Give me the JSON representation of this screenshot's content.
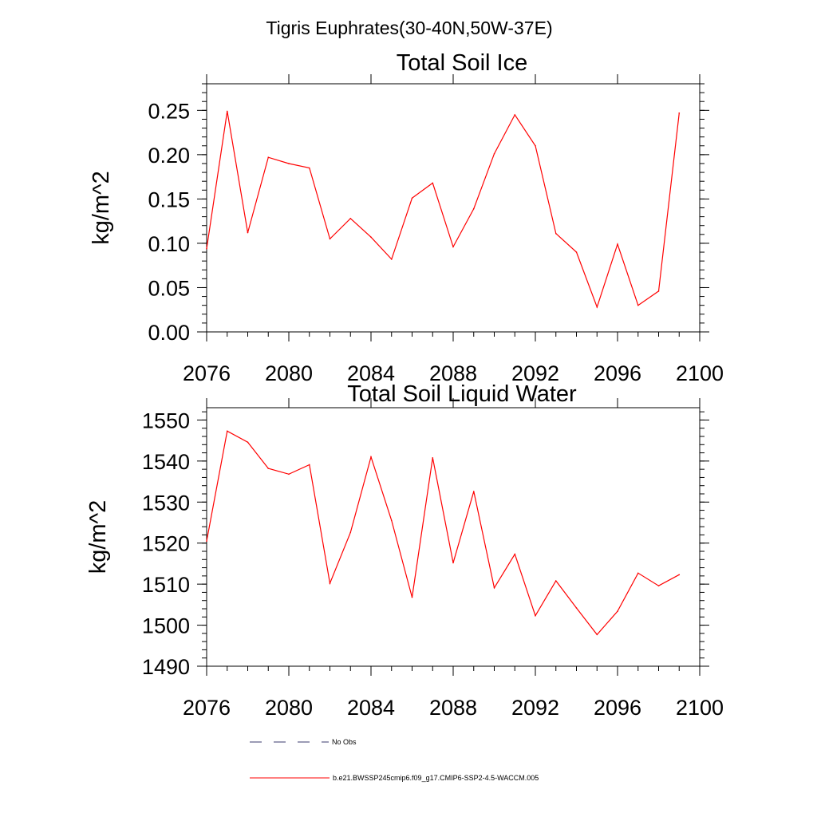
{
  "suptitle": "Tigris Euphrates(30-40N,50W-37E)",
  "chart_data": [
    {
      "type": "line",
      "title": "Total Soil Ice",
      "xlabel": "",
      "ylabel": "kg/m^2",
      "xlim": [
        2076,
        2100
      ],
      "ylim": [
        0.0,
        0.28
      ],
      "xticks": [
        "2076",
        "2080",
        "2084",
        "2088",
        "2092",
        "2096",
        "2100"
      ],
      "yticks": [
        "0.00",
        "0.05",
        "0.10",
        "0.15",
        "0.20",
        "0.25"
      ],
      "grid": false,
      "series": [
        {
          "name": "b.e21.BWSSP245cmip6.f09_g17.CMIP6-SSP2-4.5-WACCM.005",
          "color": "#ff0000",
          "x": [
            2076,
            2077,
            2078,
            2079,
            2080,
            2081,
            2082,
            2083,
            2084,
            2085,
            2086,
            2087,
            2088,
            2089,
            2090,
            2091,
            2092,
            2093,
            2094,
            2095,
            2096,
            2097,
            2098,
            2099
          ],
          "values": [
            0.094,
            0.249,
            0.112,
            0.197,
            0.19,
            0.185,
            0.105,
            0.128,
            0.107,
            0.082,
            0.151,
            0.168,
            0.096,
            0.139,
            0.201,
            0.245,
            0.21,
            0.111,
            0.09,
            0.028,
            0.099,
            0.03,
            0.046,
            0.247
          ]
        }
      ]
    },
    {
      "type": "line",
      "title": "Total Soil Liquid Water",
      "xlabel": "",
      "ylabel": "kg/m^2",
      "xlim": [
        2076,
        2100
      ],
      "ylim": [
        1490,
        1553
      ],
      "xticks": [
        "2076",
        "2080",
        "2084",
        "2088",
        "2092",
        "2096",
        "2100"
      ],
      "yticks": [
        "1490",
        "1500",
        "1510",
        "1520",
        "1530",
        "1540",
        "1550"
      ],
      "grid": false,
      "series": [
        {
          "name": "b.e21.BWSSP245cmip6.f09_g17.CMIP6-SSP2-4.5-WACCM.005",
          "color": "#ff0000",
          "x": [
            2076,
            2077,
            2078,
            2079,
            2080,
            2081,
            2082,
            2083,
            2084,
            2085,
            2086,
            2087,
            2088,
            2089,
            2090,
            2091,
            2092,
            2093,
            2094,
            2095,
            2096,
            2097,
            2098,
            2099
          ],
          "values": [
            1520.5,
            1547.3,
            1544.6,
            1538.2,
            1536.8,
            1539.1,
            1510.2,
            1522.6,
            1541.0,
            1525.5,
            1506.8,
            1540.8,
            1515.2,
            1532.6,
            1509.1,
            1517.3,
            1502.3,
            1510.8,
            1504.2,
            1497.7,
            1503.4,
            1512.7,
            1509.6,
            1512.3
          ]
        }
      ]
    }
  ],
  "legend": [
    {
      "label": "No Obs",
      "style": "dashed",
      "color": "#3a3a6e"
    },
    {
      "label": "b.e21.BWSSP245cmip6.f09_g17.CMIP6-SSP2-4.5-WACCM.005",
      "style": "solid",
      "color": "#ff0000"
    }
  ]
}
